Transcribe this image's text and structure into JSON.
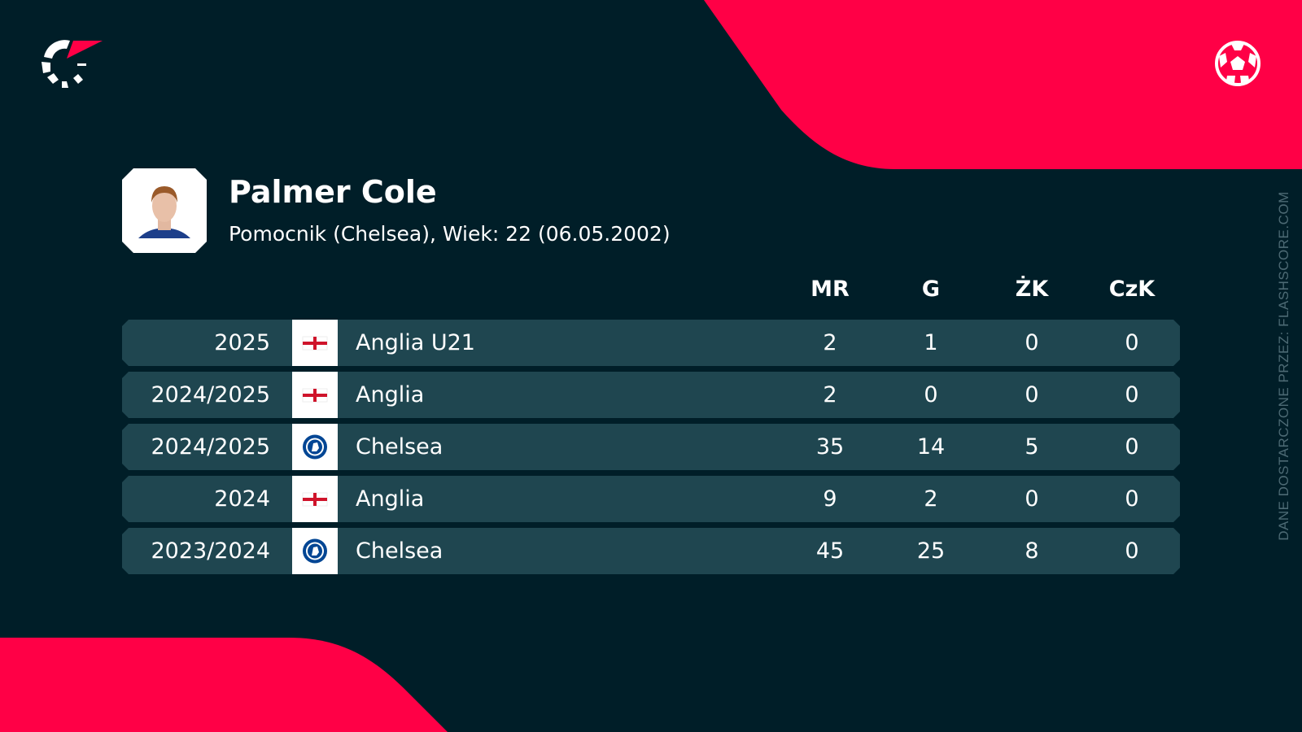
{
  "colors": {
    "background": "#001e28",
    "accent": "#ff0046",
    "row": "#1f4650"
  },
  "player": {
    "name": "Palmer Cole",
    "info": "Pomocnik (Chelsea), Wiek: 22 (06.05.2002)"
  },
  "table": {
    "headers": [
      "MR",
      "G",
      "ŻK",
      "CzK"
    ],
    "rows": [
      {
        "season": "2025",
        "team": "Anglia U21",
        "icon": "england-flag",
        "mr": "2",
        "g": "1",
        "zk": "0",
        "czk": "0"
      },
      {
        "season": "2024/2025",
        "team": "Anglia",
        "icon": "england-flag",
        "mr": "2",
        "g": "0",
        "zk": "0",
        "czk": "0"
      },
      {
        "season": "2024/2025",
        "team": "Chelsea",
        "icon": "chelsea-crest",
        "mr": "35",
        "g": "14",
        "zk": "5",
        "czk": "0"
      },
      {
        "season": "2024",
        "team": "Anglia",
        "icon": "england-flag",
        "mr": "9",
        "g": "2",
        "zk": "0",
        "czk": "0"
      },
      {
        "season": "2023/2024",
        "team": "Chelsea",
        "icon": "chelsea-crest",
        "mr": "45",
        "g": "25",
        "zk": "8",
        "czk": "0"
      }
    ]
  },
  "credit": "DANE DOSTARCZONE PRZEZ: FLASHSCORE.COM"
}
